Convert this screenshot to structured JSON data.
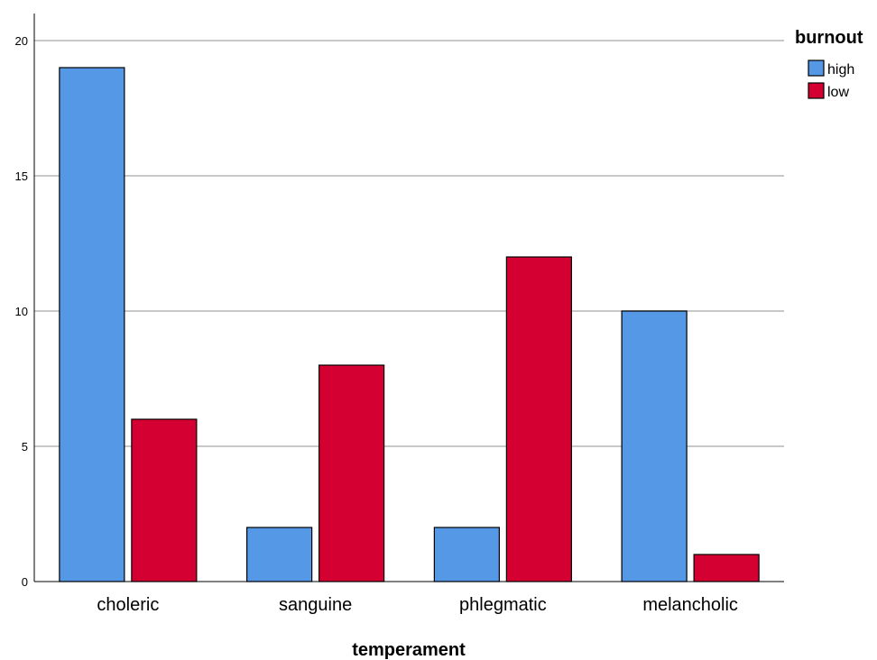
{
  "chart_data": {
    "type": "bar",
    "title": "",
    "xlabel": "temperament",
    "ylabel": "",
    "categories": [
      "choleric",
      "sanguine",
      "phlegmatic",
      "melancholic"
    ],
    "series": [
      {
        "name": "high",
        "values": [
          19,
          2,
          2,
          10
        ],
        "color": "#5598E6"
      },
      {
        "name": "low",
        "values": [
          6,
          8,
          12,
          1
        ],
        "color": "#D50032"
      }
    ],
    "ylim": [
      0,
      21
    ],
    "yticks": [
      0,
      5,
      10,
      15,
      20
    ],
    "grid": true,
    "legend": {
      "title": "burnout",
      "position": "top-right"
    }
  }
}
